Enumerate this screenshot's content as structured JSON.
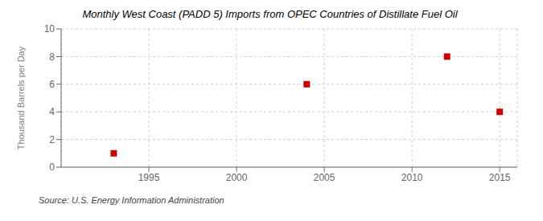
{
  "chart_data": {
    "type": "scatter",
    "title": "Monthly West Coast (PADD 5) Imports from OPEC Countries of Distillate Fuel Oil",
    "ylabel": "Thousand Barrels per Day",
    "annotations": [
      "Source: U.S. Energy Information Administration"
    ],
    "x": [
      1993,
      2004,
      2012,
      2015
    ],
    "values": [
      1,
      6,
      8,
      4
    ],
    "color": "#cc0000",
    "marker": "square",
    "xlim": [
      1990,
      2016
    ],
    "ylim": [
      0,
      10
    ],
    "xticks": [
      1995,
      2000,
      2005,
      2010,
      2015
    ],
    "yticks": [
      0,
      2,
      4,
      6,
      8,
      10
    ],
    "grid": true
  }
}
